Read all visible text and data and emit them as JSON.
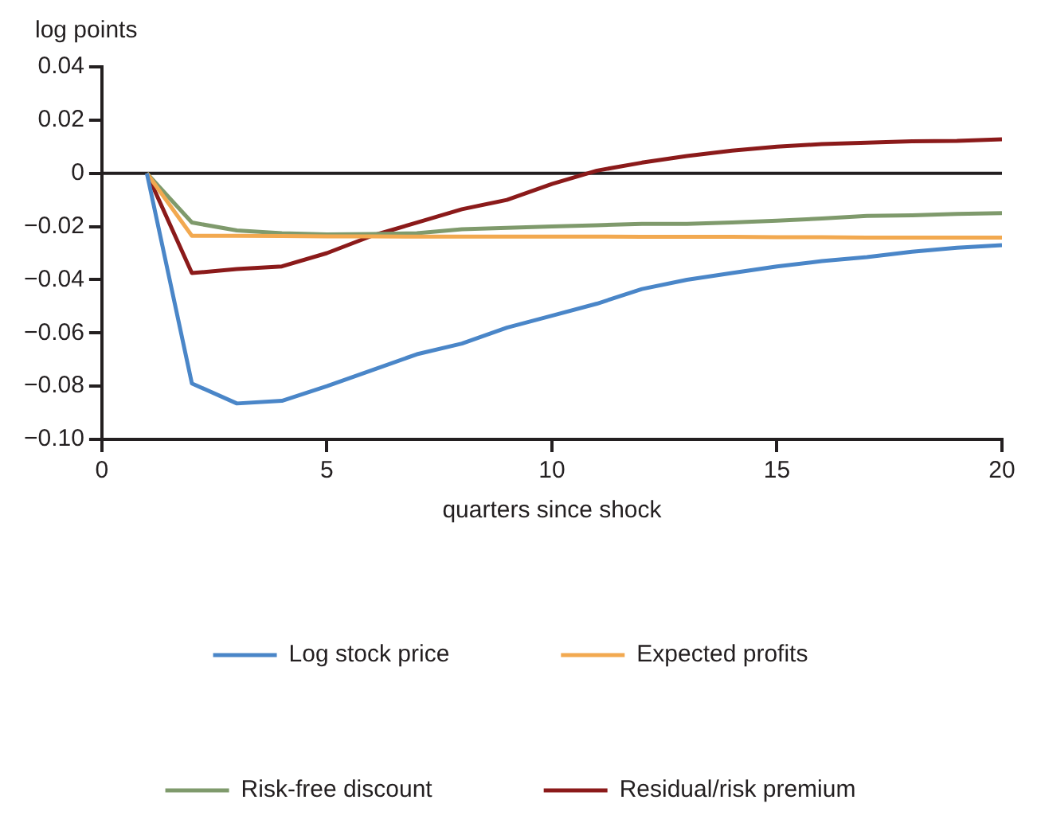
{
  "chart_data": {
    "type": "line",
    "ylabel": "log points",
    "xlabel": "quarters since shock",
    "x": [
      1,
      2,
      3,
      4,
      5,
      6,
      7,
      8,
      9,
      10,
      11,
      12,
      13,
      14,
      15,
      16,
      17,
      18,
      19,
      20
    ],
    "xlim": [
      0,
      20
    ],
    "xticks": [
      0,
      5,
      10,
      15,
      20
    ],
    "ylim": [
      -0.1,
      0.04
    ],
    "yticks": [
      {
        "value": -0.1,
        "label": "−0.10"
      },
      {
        "value": -0.08,
        "label": "−0.08"
      },
      {
        "value": -0.06,
        "label": "−0.06"
      },
      {
        "value": -0.04,
        "label": "−0.04"
      },
      {
        "value": -0.02,
        "label": "−0.02"
      },
      0,
      {
        "value": 0.02,
        "label": "0.02"
      },
      {
        "value": 0.04,
        "label": "0.04"
      }
    ],
    "grid": false,
    "legend": "bottom",
    "marker": "none",
    "line_style": "solid",
    "ref_lines": [
      {
        "axis": "y",
        "value": 0,
        "color": "#231f20"
      }
    ],
    "series": [
      {
        "name": "Log stock price",
        "color": "#4a86c8",
        "values": [
          0,
          -0.079,
          -0.0865,
          -0.0855,
          -0.08,
          -0.074,
          -0.068,
          -0.064,
          -0.058,
          -0.0535,
          -0.049,
          -0.0435,
          -0.04,
          -0.0375,
          -0.035,
          -0.033,
          -0.0315,
          -0.0295,
          -0.028,
          -0.027
        ]
      },
      {
        "name": "Expected profits",
        "color": "#f2a950",
        "values": [
          0,
          -0.0235,
          -0.0235,
          -0.0236,
          -0.0237,
          -0.0237,
          -0.0238,
          -0.0238,
          -0.0238,
          -0.0238,
          -0.0238,
          -0.0239,
          -0.0239,
          -0.0239,
          -0.024,
          -0.024,
          -0.0242,
          -0.0242,
          -0.0242,
          -0.0242
        ]
      },
      {
        "name": "Risk-free discount",
        "color": "#7f9a6c",
        "values": [
          0,
          -0.0185,
          -0.0215,
          -0.0225,
          -0.023,
          -0.0228,
          -0.0225,
          -0.021,
          -0.0205,
          -0.02,
          -0.0195,
          -0.019,
          -0.019,
          -0.0185,
          -0.0178,
          -0.017,
          -0.016,
          -0.0158,
          -0.0153,
          -0.015
        ]
      },
      {
        "name": "Residual/risk premium",
        "color": "#8b1a1a",
        "values": [
          0,
          -0.0375,
          -0.036,
          -0.035,
          -0.03,
          -0.0235,
          -0.0185,
          -0.0135,
          -0.01,
          -0.004,
          0.001,
          0.004,
          0.0065,
          0.0085,
          0.01,
          0.011,
          0.0115,
          0.012,
          0.0122,
          0.0128
        ]
      }
    ]
  }
}
